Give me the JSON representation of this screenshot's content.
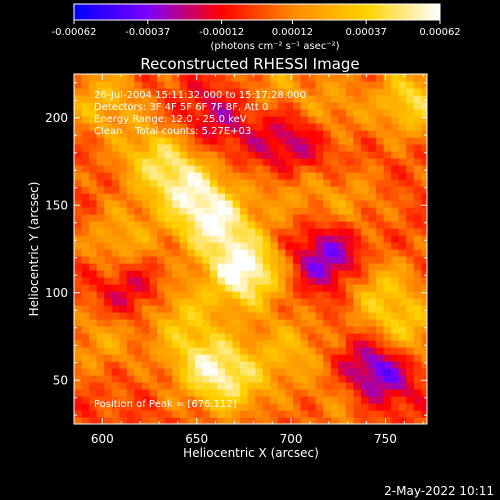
{
  "chart_data": {
    "type": "heatmap",
    "title": "Reconstructed RHESSI Image",
    "xlabel": "Heliocentric X (arcsec)",
    "ylabel": "Heliocentric Y (arcsec)",
    "xlim": [
      585,
      772
    ],
    "ylim": [
      25,
      225
    ],
    "x_ticks": [
      600,
      650,
      700,
      750
    ],
    "y_ticks": [
      50,
      100,
      150,
      200
    ],
    "colorbar": {
      "ticks": [
        "-0.00062",
        "-0.00037",
        "-0.00012",
        "0.00012",
        "0.00037",
        "0.00062"
      ],
      "tick_values": [
        -0.00062,
        -0.00037,
        -0.00012,
        0.00012,
        0.00037,
        0.00062
      ],
      "range": [
        -0.00062,
        0.00062
      ],
      "unit_label": "(photons cm⁻² s⁻¹ asec⁻²)",
      "colormap": [
        "#0000ff",
        "#7a00ff",
        "#ff0000",
        "#ff8a00",
        "#ffd200",
        "#ffffff"
      ]
    },
    "annotations": [
      "26-Jul-2004 15:11:32.000 to 15:17:28.000",
      "Detectors: 3F 4F 5F 6F 7F 8F, Att 0",
      "Energy Range: 12.0 - 25.0 keV",
      "Clean    Total counts: 5.27E+03",
      "Position of Peak = [676,112]"
    ],
    "peak": [
      676,
      112
    ],
    "hotspots": [
      {
        "x": 676,
        "y": 112,
        "v": 0.00062
      },
      {
        "x": 660,
        "y": 140,
        "v": 0.0005
      },
      {
        "x": 645,
        "y": 160,
        "v": 0.00042
      },
      {
        "x": 628,
        "y": 178,
        "v": 0.00035
      },
      {
        "x": 655,
        "y": 60,
        "v": 0.0004
      },
      {
        "x": 640,
        "y": 88,
        "v": 0.0003
      },
      {
        "x": 670,
        "y": 48,
        "v": 0.00032
      },
      {
        "x": 765,
        "y": 210,
        "v": 0.0004
      },
      {
        "x": 745,
        "y": 103,
        "v": 0.0003
      },
      {
        "x": 760,
        "y": 78,
        "v": 0.00034
      },
      {
        "x": 720,
        "y": 205,
        "v": 0.0002
      },
      {
        "x": 700,
        "y": 160,
        "v": 0.00018
      },
      {
        "x": 600,
        "y": 210,
        "v": 0.00028
      },
      {
        "x": 610,
        "y": 130,
        "v": 0.00025
      },
      {
        "x": 600,
        "y": 75,
        "v": 0.00022
      },
      {
        "x": 700,
        "y": 68,
        "v": 0.00025
      },
      {
        "x": 730,
        "y": 40,
        "v": 0.0002
      },
      {
        "x": 730,
        "y": 150,
        "v": 0.00018
      },
      {
        "x": 690,
        "y": 220,
        "v": 0.00018
      }
    ],
    "coldspots": [
      {
        "x": 720,
        "y": 120,
        "v": -0.0004
      },
      {
        "x": 745,
        "y": 55,
        "v": -0.0005
      },
      {
        "x": 700,
        "y": 185,
        "v": -0.0003
      },
      {
        "x": 615,
        "y": 100,
        "v": -0.00025
      },
      {
        "x": 660,
        "y": 200,
        "v": -0.00022
      }
    ]
  },
  "footer": {
    "timestamp": "2-May-2022 10:11"
  }
}
